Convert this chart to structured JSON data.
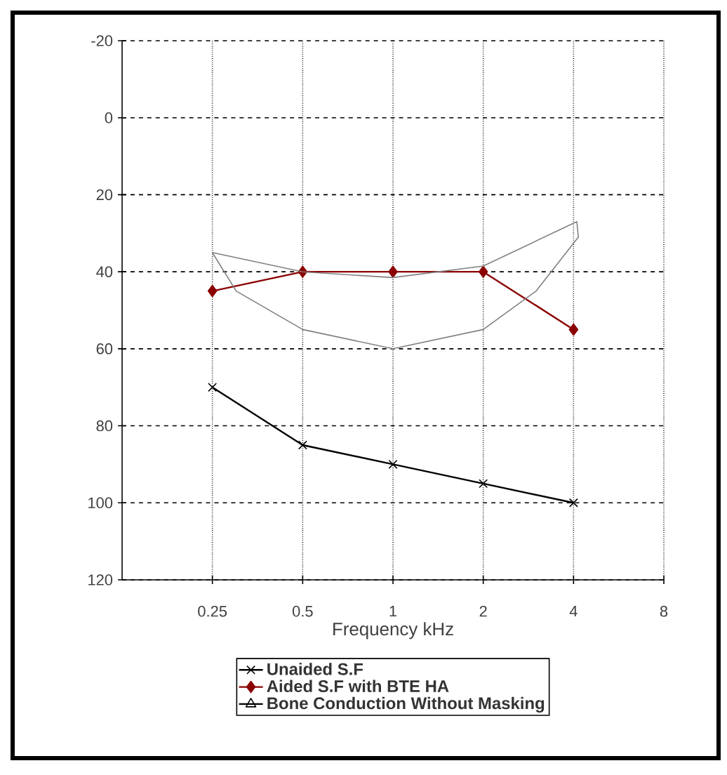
{
  "chart_data": {
    "type": "line",
    "xlabel": "Frequency kHz",
    "log": "x",
    "xlim": [
      0.125,
      8
    ],
    "xticks": [
      0.25,
      0.5,
      1,
      2,
      4,
      8
    ],
    "ylim": [
      120,
      -20
    ],
    "yticks": [
      -20,
      0,
      20,
      40,
      60,
      80,
      100,
      120
    ],
    "grid": true,
    "legend": "bottom",
    "series": [
      {
        "name": "Unaided S.F",
        "color": "#000000",
        "marker": "cross",
        "x": [
          0.25,
          0.5,
          1,
          2,
          4
        ],
        "values": [
          70,
          85,
          90,
          95,
          100
        ]
      },
      {
        "name": "Aided S.F with BTE HA",
        "color": "#8b0000",
        "marker": "diamond",
        "x": [
          0.25,
          0.5,
          1,
          2,
          4
        ],
        "values": [
          45,
          40,
          40,
          40,
          55
        ]
      },
      {
        "name": "Bone Conduction Without Masking",
        "color": "#000000",
        "marker": "triangle"
      }
    ]
  }
}
